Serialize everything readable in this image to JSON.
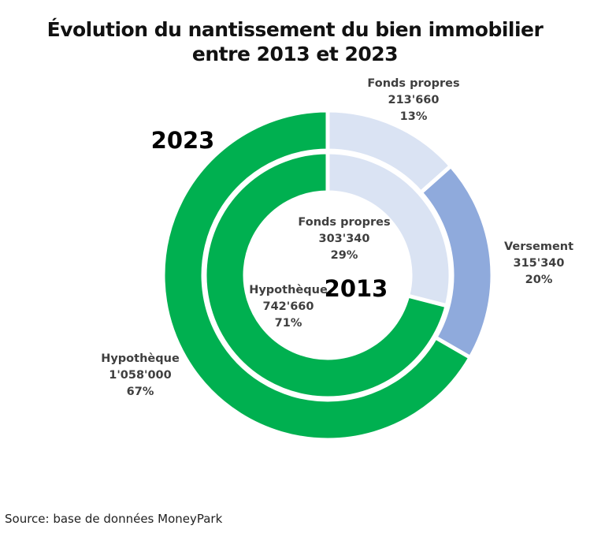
{
  "chart_data": {
    "type": "pie",
    "variant": "nested-donut",
    "title": "Évolution du nantissement du bien immobilier entre 2013 et 2023",
    "title_lines": [
      "Évolution du nantissement du bien immobilier",
      "entre 2013 et 2023"
    ],
    "rings": [
      {
        "name": "2023",
        "position": "outer",
        "slices": [
          {
            "label": "Fonds propres",
            "value": 213660,
            "value_text": "213'660",
            "percent_text": "13%",
            "color": "#dae3f3"
          },
          {
            "label": "Versement",
            "value": 315340,
            "value_text": "315'340",
            "percent_text": "20%",
            "color": "#8faadc"
          },
          {
            "label": "Hypothèque",
            "value": 1058000,
            "value_text": "1'058'000",
            "percent_text": "67%",
            "color": "#00b050"
          }
        ]
      },
      {
        "name": "2013",
        "position": "inner",
        "slices": [
          {
            "label": "Fonds propres",
            "value": 303340,
            "value_text": "303'340",
            "percent_text": "29%",
            "color": "#dae3f3"
          },
          {
            "label": "Hypothèque",
            "value": 742660,
            "value_text": "742'660",
            "percent_text": "71%",
            "color": "#00b050"
          }
        ]
      }
    ],
    "start_angle": "12 o'clock",
    "direction": "clockwise",
    "legend": "none",
    "ring_labels": {
      "outer": "2023",
      "inner": "2013"
    }
  },
  "source": "Source: base de données MoneyPark"
}
